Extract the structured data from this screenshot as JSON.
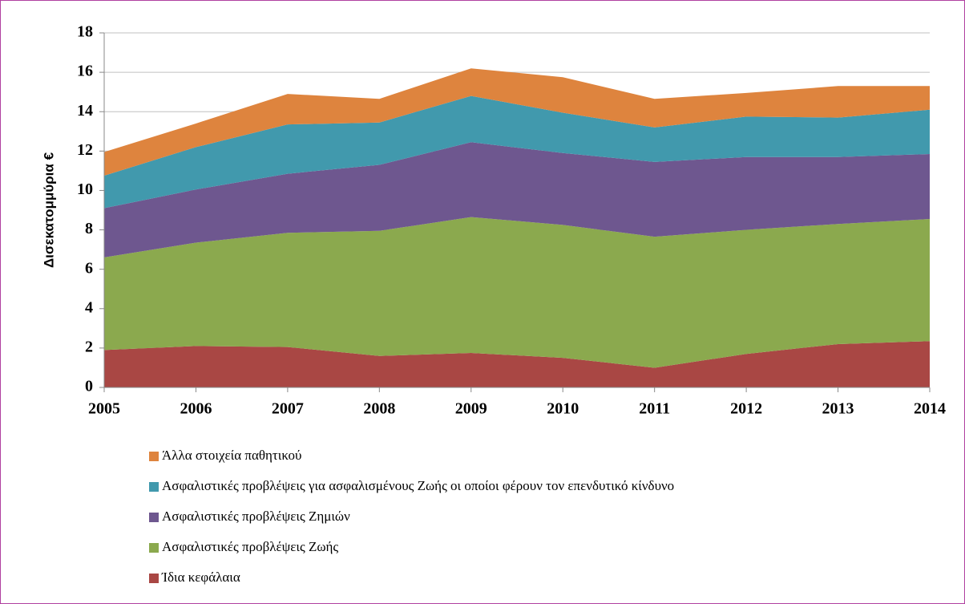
{
  "chart_data": {
    "type": "stacked_area",
    "y_label": "Δισεκατομμύρια €",
    "x": [
      2005,
      2006,
      2007,
      2008,
      2009,
      2010,
      2011,
      2012,
      2013,
      2014
    ],
    "xlim": [
      2005,
      2014
    ],
    "xticks": [
      2005,
      2006,
      2007,
      2008,
      2009,
      2010,
      2011,
      2012,
      2013,
      2014
    ],
    "ylim": [
      0,
      18
    ],
    "yticks": [
      0,
      2,
      4,
      6,
      8,
      10,
      12,
      14,
      16,
      18
    ],
    "grid": true,
    "legend": "bottom",
    "series": [
      {
        "name": "Ίδια κεφάλαια",
        "color": "#a94744",
        "values": [
          1.9,
          2.1,
          2.05,
          1.6,
          1.75,
          1.5,
          1.0,
          1.7,
          2.2,
          2.35
        ]
      },
      {
        "name": "Ασφαλιστικές προβλέψεις Ζωής",
        "color": "#8ba94e",
        "values": [
          4.7,
          5.25,
          5.8,
          6.35,
          6.9,
          6.75,
          6.65,
          6.3,
          6.1,
          6.2
        ]
      },
      {
        "name": "Ασφαλιστικές προβλέψεις Ζημιών",
        "color": "#6e578f",
        "values": [
          2.5,
          2.7,
          3.0,
          3.35,
          3.8,
          3.65,
          3.8,
          3.7,
          3.4,
          3.3
        ]
      },
      {
        "name": "Ασφαλιστικές προβλέψεις για ασφαλισμένους Ζωής οι οποίοι φέρουν τον επενδυτικό κίνδυνο",
        "color": "#4199ad",
        "values": [
          1.65,
          2.15,
          2.5,
          2.15,
          2.35,
          2.05,
          1.75,
          2.05,
          2.0,
          2.25
        ]
      },
      {
        "name": "Άλλα στοιχεία παθητικού",
        "color": "#de843e",
        "values": [
          1.2,
          1.2,
          1.55,
          1.2,
          1.4,
          1.8,
          1.45,
          1.2,
          1.6,
          1.2
        ]
      }
    ]
  }
}
